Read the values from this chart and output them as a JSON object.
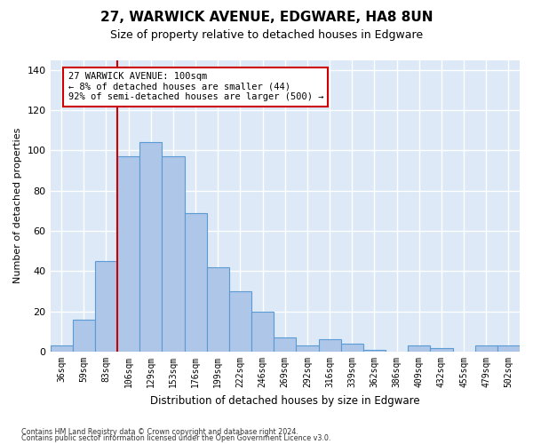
{
  "title_line1": "27, WARWICK AVENUE, EDGWARE, HA8 8UN",
  "title_line2": "Size of property relative to detached houses in Edgware",
  "xlabel": "Distribution of detached houses by size in Edgware",
  "ylabel": "Number of detached properties",
  "categories": [
    "36sqm",
    "59sqm",
    "83sqm",
    "106sqm",
    "129sqm",
    "153sqm",
    "176sqm",
    "199sqm",
    "222sqm",
    "246sqm",
    "269sqm",
    "292sqm",
    "316sqm",
    "339sqm",
    "362sqm",
    "386sqm",
    "409sqm",
    "432sqm",
    "455sqm",
    "479sqm",
    "502sqm"
  ],
  "bar_values": [
    3,
    16,
    45,
    97,
    104,
    97,
    69,
    42,
    30,
    20,
    7,
    3,
    6,
    4,
    1,
    0,
    3,
    2,
    0,
    3,
    3
  ],
  "bar_color": "#aec6e8",
  "bar_edge_color": "#5b9bd5",
  "vline_x_index": 2.5,
  "vline_color": "#cc0000",
  "annotation_text": "27 WARWICK AVENUE: 100sqm\n← 8% of detached houses are smaller (44)\n92% of semi-detached houses are larger (500) →",
  "annotation_box_color": "#ffffff",
  "annotation_box_edge": "#cc0000",
  "ylim": [
    0,
    145
  ],
  "yticks": [
    0,
    20,
    40,
    60,
    80,
    100,
    120,
    140
  ],
  "background_color": "#dde9f7",
  "grid_color": "#ffffff",
  "footer_line1": "Contains HM Land Registry data © Crown copyright and database right 2024.",
  "footer_line2": "Contains public sector information licensed under the Open Government Licence v3.0."
}
